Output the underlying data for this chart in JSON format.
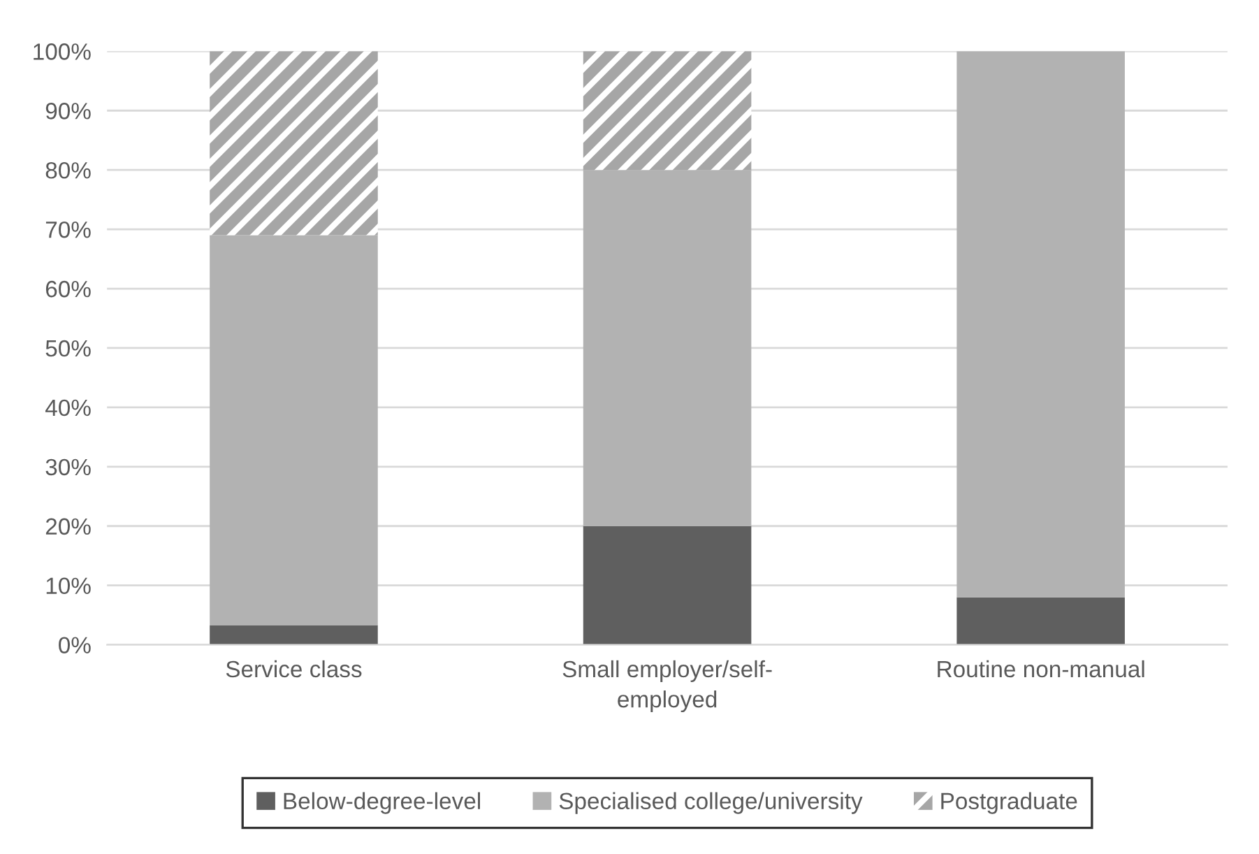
{
  "chart_data": {
    "type": "bar",
    "stacked": true,
    "categories": [
      "Service class",
      "Small employer/self-employed",
      "Routine non-manual"
    ],
    "series": [
      {
        "name": "Below-degree-level",
        "color": "#5f5f5f",
        "values": [
          3.3,
          20,
          8
        ]
      },
      {
        "name": "Specialised college/university",
        "color": "#b2b2b2",
        "values": [
          65.7,
          60,
          92
        ]
      },
      {
        "name": "Postgraduate",
        "color": "#a6a6a6",
        "values": [
          31,
          20,
          0
        ]
      }
    ],
    "ylim": [
      0,
      100
    ],
    "yticks": [
      {
        "value": 0,
        "label": "0%"
      },
      {
        "value": 10,
        "label": "10%"
      },
      {
        "value": 20,
        "label": "20%"
      },
      {
        "value": 30,
        "label": "30%"
      },
      {
        "value": 40,
        "label": "40%"
      },
      {
        "value": 50,
        "label": "50%"
      },
      {
        "value": 60,
        "label": "60%"
      },
      {
        "value": 70,
        "label": "70%"
      },
      {
        "value": 80,
        "label": "80%"
      },
      {
        "value": 90,
        "label": "90%"
      },
      {
        "value": 100,
        "label": "100%"
      }
    ],
    "grid": "y",
    "legend": "bottom"
  }
}
